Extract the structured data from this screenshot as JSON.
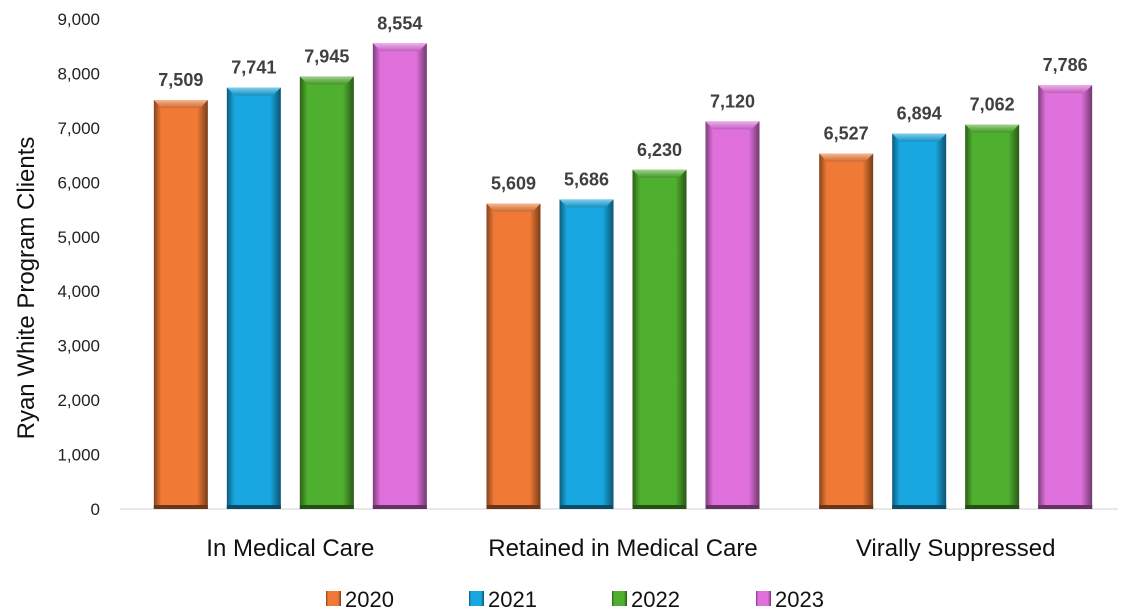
{
  "chart_data": {
    "type": "bar",
    "title": "",
    "xlabel": "",
    "ylabel": "Ryan White Program Clients",
    "ylim": [
      0,
      9000
    ],
    "yticks": [
      0,
      1000,
      2000,
      3000,
      4000,
      5000,
      6000,
      7000,
      8000,
      9000
    ],
    "ytick_labels": [
      "0",
      "1,000",
      "2,000",
      "3,000",
      "4,000",
      "5,000",
      "6,000",
      "7,000",
      "8,000",
      "9,000"
    ],
    "grid": false,
    "legend_position": "bottom",
    "categories": [
      "In Medical Care",
      "Retained in Medical Care",
      "Virally Suppressed"
    ],
    "series": [
      {
        "name": "2020",
        "color": "#F07A35",
        "values": [
          7509,
          5609,
          6527
        ],
        "labels": [
          "7,509",
          "5,609",
          "6,527"
        ]
      },
      {
        "name": "2021",
        "color": "#18A7E0",
        "values": [
          7741,
          5686,
          6894
        ],
        "labels": [
          "7,741",
          "5,686",
          "6,894"
        ]
      },
      {
        "name": "2022",
        "color": "#4FAF2E",
        "values": [
          7945,
          6230,
          7062
        ],
        "labels": [
          "7,945",
          "6,230",
          "7,062"
        ]
      },
      {
        "name": "2023",
        "color": "#E070DC",
        "values": [
          8554,
          7120,
          7786
        ],
        "labels": [
          "8,554",
          "7,120",
          "7,786"
        ]
      }
    ]
  }
}
